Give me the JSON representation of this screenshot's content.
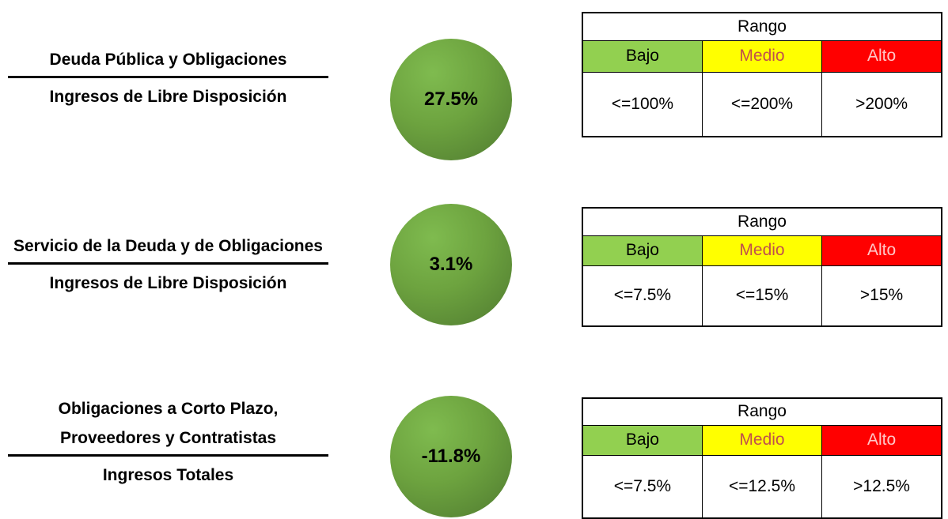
{
  "indicators": [
    {
      "numerator": "Deuda Pública y Obligaciones",
      "denominator": "Ingresos de Libre Disposición",
      "value": "27.5%",
      "range": {
        "title": "Rango",
        "levels": [
          "Bajo",
          "Medio",
          "Alto"
        ],
        "thresholds": [
          "<=100%",
          "<=200%",
          ">200%"
        ]
      }
    },
    {
      "numerator": "Servicio de la Deuda y de Obligaciones",
      "denominator": "Ingresos de Libre Disposición",
      "value": "3.1%",
      "range": {
        "title": "Rango",
        "levels": [
          "Bajo",
          "Medio",
          "Alto"
        ],
        "thresholds": [
          "<=7.5%",
          "<=15%",
          ">15%"
        ]
      }
    },
    {
      "numerator": "Obligaciones a Corto Plazo, Proveedores y Contratistas",
      "denominator": "Ingresos Totales",
      "value": "-11.8%",
      "range": {
        "title": "Rango",
        "levels": [
          "Bajo",
          "Medio",
          "Alto"
        ],
        "thresholds": [
          "<=7.5%",
          "<=12.5%",
          ">12.5%"
        ]
      }
    }
  ]
}
